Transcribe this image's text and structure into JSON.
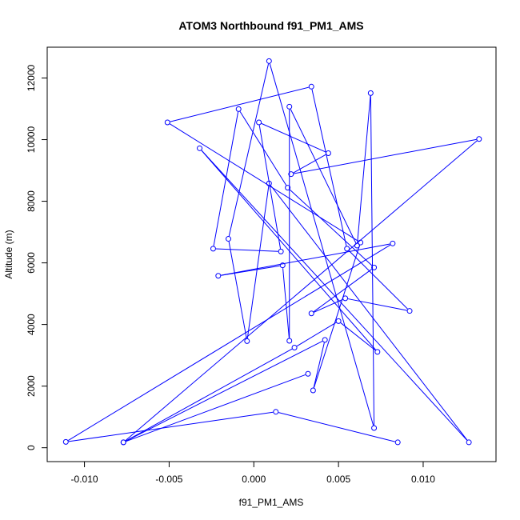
{
  "chart_data": {
    "type": "line",
    "title": "ATOM3 Northbound f91_PM1_AMS",
    "xlabel": "f91_PM1_AMS",
    "ylabel": "Altitude (m)",
    "xlim": [
      -0.0122,
      0.0143
    ],
    "ylim": [
      -450,
      13000
    ],
    "x_ticks": [
      -0.01,
      -0.005,
      0.0,
      0.005,
      0.01
    ],
    "x_tick_labels": [
      "-0.010",
      "-0.005",
      "0.000",
      "0.005",
      "0.010"
    ],
    "y_ticks": [
      0,
      2000,
      4000,
      6000,
      8000,
      10000,
      12000
    ],
    "y_tick_labels": [
      "0",
      "2000",
      "4000",
      "6000",
      "8000",
      "10000",
      "12000"
    ],
    "grid": false,
    "legend": "none",
    "series_color": "#0000ff",
    "marker": "open-circle",
    "series": [
      {
        "x": [
          0.0085,
          0.0013,
          -0.0111,
          0.0082,
          -0.0021,
          0.0017,
          0.0021,
          0.0021,
          0.0061,
          0.0069,
          0.0071,
          0.0009,
          -0.0015,
          -0.0004,
          0.0009,
          0.0127,
          -0.0032,
          0.0073,
          0.005,
          0.0024,
          -0.0077,
          0.0133,
          0.0022,
          0.0044,
          0.0003,
          0.0016,
          -0.0024,
          -0.0009,
          0.002,
          0.0071,
          0.0034,
          0.0054,
          0.0092,
          0.0055,
          0.0034,
          -0.0051,
          0.0063,
          0.0035,
          0.0042,
          -0.0077,
          0.0032
        ],
        "y": [
          175,
          1165,
          190,
          6630,
          5580,
          5920,
          3470,
          11070,
          6560,
          11510,
          640,
          12550,
          6780,
          3460,
          8580,
          175,
          9720,
          3110,
          4110,
          3250,
          175,
          10020,
          8880,
          9560,
          10560,
          6370,
          6460,
          10990,
          8440,
          5850,
          4360,
          4850,
          4440,
          6460,
          11720,
          10560,
          6660,
          1860,
          3500,
          175,
          2400
        ]
      }
    ]
  }
}
